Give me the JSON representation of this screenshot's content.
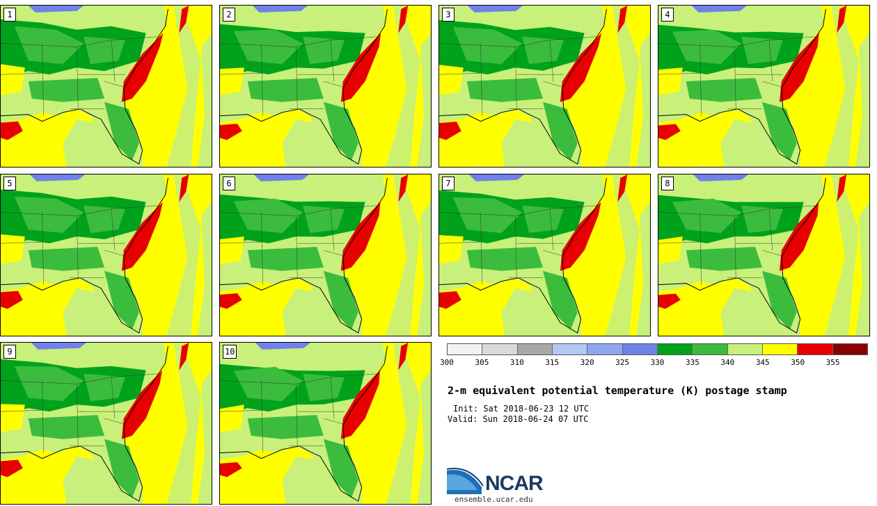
{
  "stamps": [
    {
      "label": "1"
    },
    {
      "label": "2"
    },
    {
      "label": "3"
    },
    {
      "label": "4"
    },
    {
      "label": "5"
    },
    {
      "label": "6"
    },
    {
      "label": "7"
    },
    {
      "label": "8"
    },
    {
      "label": "9"
    },
    {
      "label": "10"
    }
  ],
  "colorbar": {
    "colors": [
      "#f2f2f2",
      "#d9d9d9",
      "#a8a8a8",
      "#b3c9f3",
      "#8da6ef",
      "#6f82ea",
      "#00a21c",
      "#3cbc3c",
      "#c8f07a",
      "#ffff00",
      "#e60000",
      "#8b0000"
    ],
    "ticks": [
      "300",
      "305",
      "310",
      "315",
      "320",
      "325",
      "330",
      "335",
      "340",
      "345",
      "350",
      "355"
    ]
  },
  "title": "2-m equivalent potential temperature (K) postage stamp",
  "init": "Init: Sat 2018-06-23 12 UTC",
  "valid": "Valid: Sun 2018-06-24 07 UTC",
  "logo": {
    "text": "NCAR",
    "site": "ensemble.ucar.edu"
  }
}
